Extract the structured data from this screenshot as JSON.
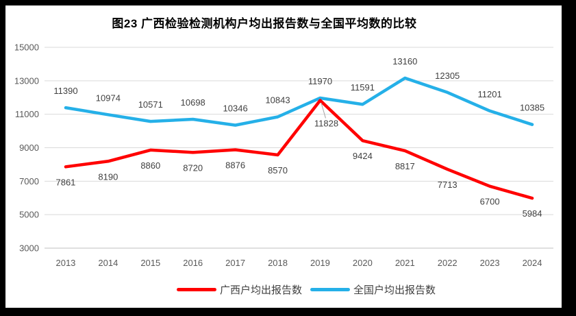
{
  "title": "图23 广西检验检测机构户均出报告数与全国平均数的比较",
  "chart_data": {
    "type": "line",
    "categories": [
      "2013",
      "2014",
      "2015",
      "2016",
      "2017",
      "2018",
      "2019",
      "2020",
      "2021",
      "2022",
      "2023",
      "2024"
    ],
    "series": [
      {
        "name": "广西户均出报告数",
        "color": "#FF0000",
        "label_side": "below",
        "values": [
          7861,
          8190,
          8860,
          8720,
          8876,
          8570,
          11828,
          9424,
          8817,
          7713,
          6700,
          5984
        ]
      },
      {
        "name": "全国户均出报告数",
        "color": "#25B0E8",
        "label_side": "above",
        "values": [
          11390,
          10974,
          10571,
          10698,
          10346,
          10843,
          11970,
          11591,
          13160,
          12305,
          11201,
          10385
        ]
      }
    ],
    "title": "图23 广西检验检测机构户均出报告数与全国平均数的比较",
    "xlabel": "",
    "ylabel": "",
    "ylim": [
      3000,
      15000
    ],
    "yticks": [
      15000,
      13000,
      11000,
      9000,
      7000,
      5000,
      3000
    ],
    "grid": "horizontal",
    "legend_position": "bottom",
    "data_labels": true,
    "label_overrides": [
      {
        "series": 0,
        "index": 6,
        "dx": 9,
        "dy": 38,
        "leader": true
      }
    ],
    "style": {
      "grid_color": "#D9D9D9",
      "axis_line_color": "#BFBFBF",
      "tick_label_color": "#595959",
      "data_label_color": "#404040",
      "leader_color": "#A6A6A6",
      "frame_border_color": "#000000",
      "background": "#FFFFFF"
    }
  }
}
